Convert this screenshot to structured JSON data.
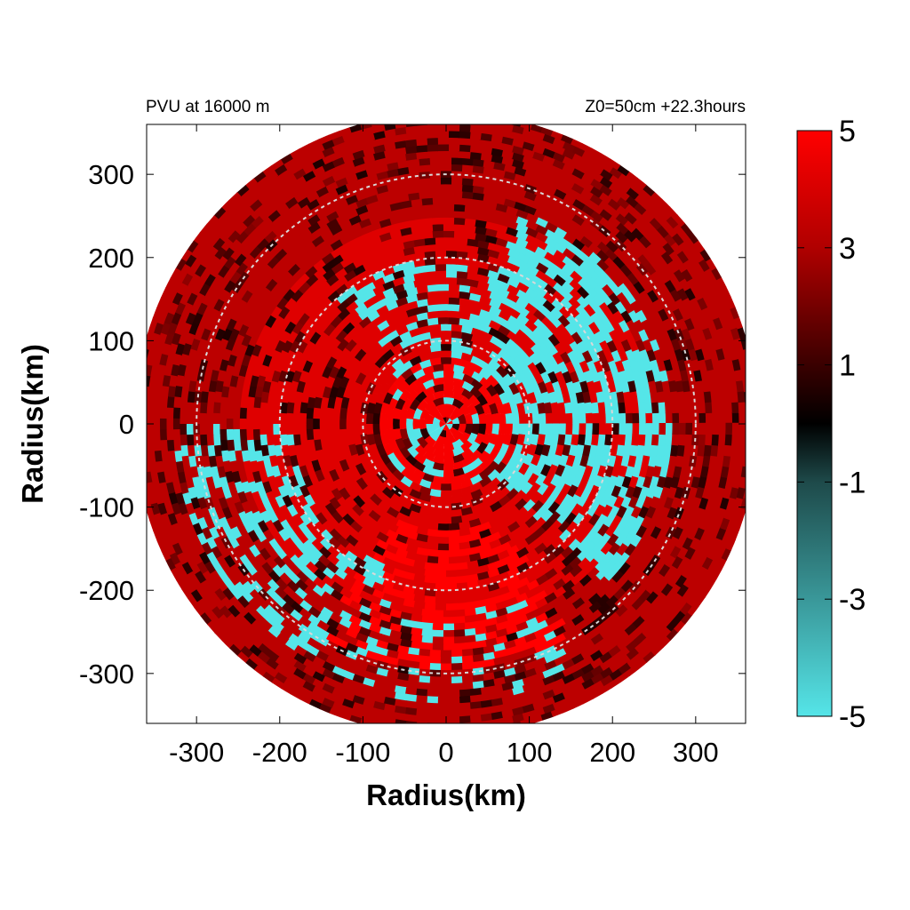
{
  "chart_data": {
    "type": "heatmap",
    "title_left": "PVU at 16000 m",
    "title_right": "Z0=50cm  +22.3hours",
    "xlabel": "Radius(km)",
    "ylabel": "Radius(km)",
    "xlim": [
      -360,
      360
    ],
    "ylim": [
      -360,
      360
    ],
    "xticks": [
      -300,
      -200,
      -100,
      0,
      100,
      200,
      300
    ],
    "yticks": [
      300,
      200,
      100,
      0,
      -100,
      -200,
      -300
    ],
    "domain_radius_km": 375,
    "grid": "off",
    "reference_circles_km": [
      100,
      200,
      300
    ],
    "colorbar": {
      "min": -5,
      "max": 5,
      "ticks": [
        5,
        3,
        1,
        -1,
        -3,
        -5
      ],
      "stops": [
        {
          "value": -5,
          "color": "#55e5e8"
        },
        {
          "value": -1,
          "color": "#1e4a4a"
        },
        {
          "value": 0,
          "color": "#000000"
        },
        {
          "value": 1,
          "color": "#3a0000"
        },
        {
          "value": 3,
          "color": "#b00000"
        },
        {
          "value": 5,
          "color": "#ff0000"
        }
      ]
    },
    "field_summary": [
      {
        "region": "outer ring 250-375 km",
        "typical_value": 3.5
      },
      {
        "region": "eastern inner band 100-250 km",
        "typical_value": -5
      },
      {
        "region": "core 0-80 km",
        "typical_value": 4.5
      },
      {
        "region": "southwest arcs 200-300 km",
        "typical_value": -5
      },
      {
        "region": "south sector 150-300 km",
        "typical_value": 5
      }
    ]
  }
}
